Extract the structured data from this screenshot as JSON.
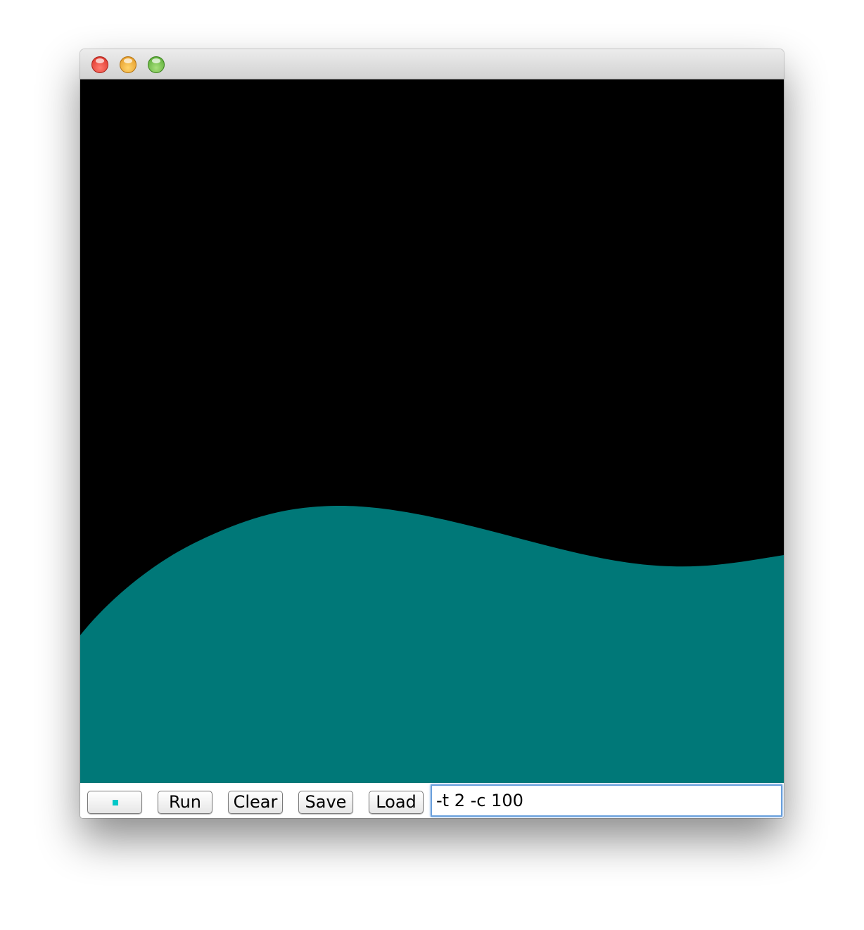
{
  "window": {
    "controls": [
      "close",
      "minimize",
      "maximize"
    ]
  },
  "canvas": {
    "background_color": "#000000",
    "fill_color": "#007878"
  },
  "toolbar": {
    "color_swatch": "#00c8c8",
    "run_label": "Run",
    "clear_label": "Clear",
    "save_label": "Save",
    "load_label": "Load",
    "command_value": "-t 2 -c 100"
  }
}
